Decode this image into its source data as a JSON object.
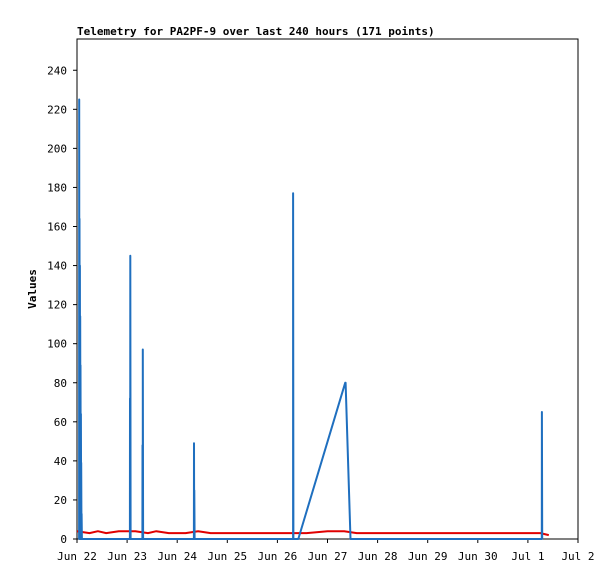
{
  "chart_data": {
    "type": "line",
    "title": "Telemetry for PA2PF-9 over last 240 hours (171 points)",
    "xlabel": "",
    "ylabel": "Values",
    "ylim": [
      0,
      256
    ],
    "yticks": [
      0,
      20,
      40,
      60,
      80,
      100,
      120,
      140,
      160,
      180,
      200,
      220,
      240
    ],
    "xlim": [
      "2024-06-22T00:00",
      "2024-07-02T00:00"
    ],
    "xtick_labels": [
      "Jun 22",
      "Jun 23",
      "Jun 24",
      "Jun 25",
      "Jun 26",
      "Jun 27",
      "Jun 28",
      "Jun 29",
      "Jun 30",
      "Jul 1",
      "Jul 2"
    ],
    "grid": false,
    "legend": "none",
    "series": [
      {
        "color": "#1f6fbf",
        "points": [
          [
            "2024-06-22T01:00",
            0
          ],
          [
            "2024-06-22T01:02",
            225
          ],
          [
            "2024-06-22T01:10",
            0
          ],
          [
            "2024-06-22T01:12",
            164
          ],
          [
            "2024-06-22T01:20",
            0
          ],
          [
            "2024-06-22T01:22",
            140
          ],
          [
            "2024-06-22T01:30",
            0
          ],
          [
            "2024-06-22T01:32",
            114
          ],
          [
            "2024-06-22T01:40",
            0
          ],
          [
            "2024-06-22T01:42",
            89
          ],
          [
            "2024-06-22T01:50",
            0
          ],
          [
            "2024-06-22T01:52",
            64
          ],
          [
            "2024-06-22T02:00",
            0
          ],
          [
            "2024-06-22T02:02",
            39
          ],
          [
            "2024-06-22T02:10",
            0
          ],
          [
            "2024-06-22T02:12",
            13
          ],
          [
            "2024-06-22T02:20",
            0
          ],
          [
            "2024-06-23T01:20",
            0
          ],
          [
            "2024-06-23T01:22",
            72
          ],
          [
            "2024-06-23T01:30",
            0
          ],
          [
            "2024-06-23T01:32",
            145
          ],
          [
            "2024-06-23T01:40",
            0
          ],
          [
            "2024-06-23T07:20",
            0
          ],
          [
            "2024-06-23T07:22",
            48
          ],
          [
            "2024-06-23T07:30",
            0
          ],
          [
            "2024-06-23T07:32",
            97
          ],
          [
            "2024-06-23T07:40",
            0
          ],
          [
            "2024-06-24T08:00",
            0
          ],
          [
            "2024-06-24T08:02",
            49
          ],
          [
            "2024-06-24T08:10",
            0
          ],
          [
            "2024-06-24T08:12",
            25
          ],
          [
            "2024-06-24T08:20",
            0
          ],
          [
            "2024-06-26T07:30",
            0
          ],
          [
            "2024-06-26T07:32",
            177
          ],
          [
            "2024-06-26T07:40",
            0
          ],
          [
            "2024-06-26T10:00",
            0
          ],
          [
            "2024-06-27T08:30",
            80
          ],
          [
            "2024-06-27T08:40",
            80
          ],
          [
            "2024-06-27T11:00",
            0
          ],
          [
            "2024-07-01T06:40",
            0
          ],
          [
            "2024-07-01T06:42",
            65
          ],
          [
            "2024-07-01T06:50",
            0
          ]
        ]
      },
      {
        "color": "#e00000",
        "points": [
          [
            "2024-06-22T00:00",
            4
          ],
          [
            "2024-06-22T06:00",
            3
          ],
          [
            "2024-06-22T10:00",
            4
          ],
          [
            "2024-06-22T14:00",
            3
          ],
          [
            "2024-06-22T20:00",
            4
          ],
          [
            "2024-06-23T04:00",
            4
          ],
          [
            "2024-06-23T10:00",
            3
          ],
          [
            "2024-06-23T14:00",
            4
          ],
          [
            "2024-06-23T20:00",
            3
          ],
          [
            "2024-06-24T04:00",
            3
          ],
          [
            "2024-06-24T10:00",
            4
          ],
          [
            "2024-06-24T16:00",
            3
          ],
          [
            "2024-06-25T08:00",
            3
          ],
          [
            "2024-06-26T06:00",
            3
          ],
          [
            "2024-06-26T14:00",
            3
          ],
          [
            "2024-06-27T00:00",
            4
          ],
          [
            "2024-06-27T08:00",
            4
          ],
          [
            "2024-06-27T14:00",
            3
          ],
          [
            "2024-06-28T12:00",
            3
          ],
          [
            "2024-06-29T12:00",
            3
          ],
          [
            "2024-06-30T12:00",
            3
          ],
          [
            "2024-07-01T06:00",
            3
          ],
          [
            "2024-07-01T10:00",
            2
          ]
        ]
      }
    ]
  }
}
